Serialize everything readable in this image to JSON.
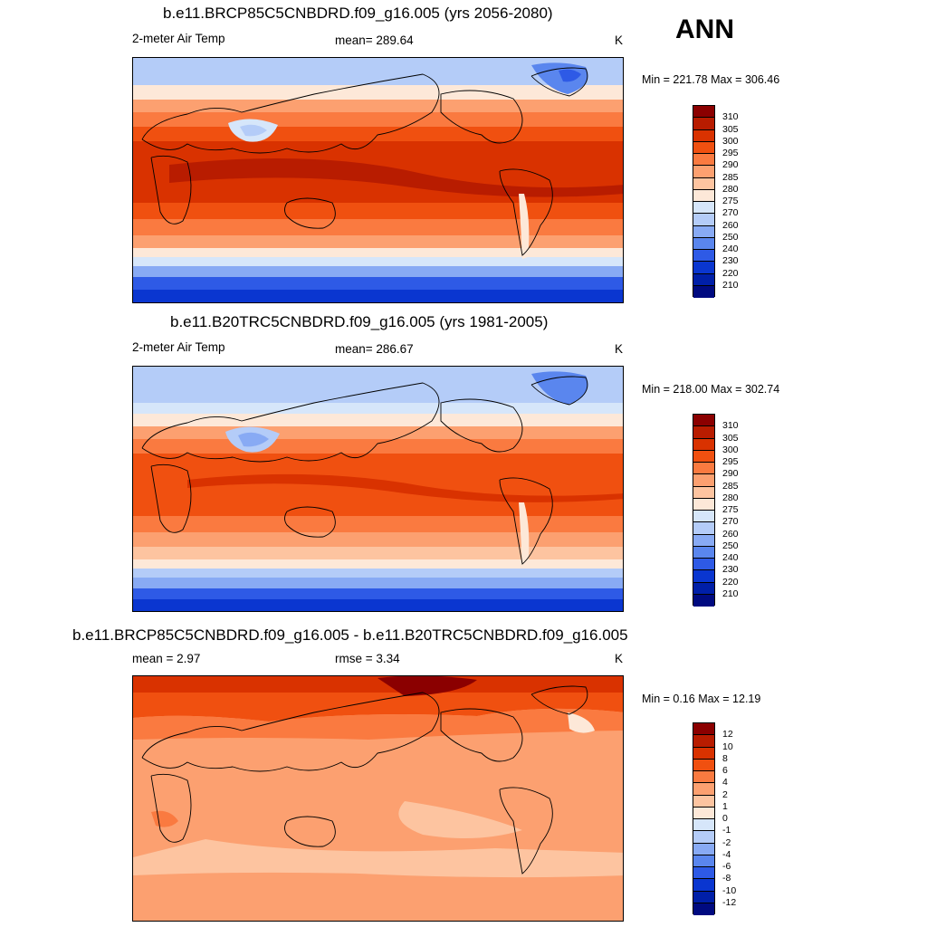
{
  "season": "ANN",
  "units": "K",
  "panels": [
    {
      "title": "b.e11.BRCP85C5CNBDRD.f09_g16.005 (yrs 2056-2080)",
      "left_label": "2-meter Air Temp",
      "center_label": "mean= 289.64",
      "units": "K",
      "minmax": "Min = 221.78 Max = 306.46"
    },
    {
      "title": "b.e11.B20TRC5CNBDRD.f09_g16.005 (yrs 1981-2005)",
      "left_label": "2-meter Air Temp",
      "center_label": "mean= 286.67",
      "units": "K",
      "minmax": "Min = 218.00 Max = 302.74"
    },
    {
      "title": "b.e11.BRCP85C5CNBDRD.f09_g16.005 - b.e11.B20TRC5CNBDRD.f09_g16.005",
      "left_label": "mean =   2.97",
      "center_label": "rmse =   3.34",
      "units": "K",
      "minmax": "Min =   0.16 Max =  12.19"
    }
  ],
  "colorbars": [
    {
      "labels": [
        "310",
        "305",
        "300",
        "295",
        "290",
        "285",
        "280",
        "275",
        "270",
        "260",
        "250",
        "240",
        "230",
        "220",
        "210"
      ],
      "colors": [
        "#8b0000",
        "#b81c00",
        "#d93200",
        "#f05010",
        "#fa7a40",
        "#fca070",
        "#fdc4a0",
        "#fde8d8",
        "#d6e6fa",
        "#b4ccf8",
        "#88aaf4",
        "#5a86ee",
        "#2e5ae6",
        "#0a36d0",
        "#001fa8",
        "#000a80"
      ]
    },
    {
      "labels": [
        "310",
        "305",
        "300",
        "295",
        "290",
        "285",
        "280",
        "275",
        "270",
        "260",
        "250",
        "240",
        "230",
        "220",
        "210"
      ],
      "colors": [
        "#8b0000",
        "#b81c00",
        "#d93200",
        "#f05010",
        "#fa7a40",
        "#fca070",
        "#fdc4a0",
        "#fde8d8",
        "#d6e6fa",
        "#b4ccf8",
        "#88aaf4",
        "#5a86ee",
        "#2e5ae6",
        "#0a36d0",
        "#001fa8",
        "#000a80"
      ]
    },
    {
      "labels": [
        "12",
        "10",
        "8",
        "6",
        "4",
        "2",
        "1",
        "0",
        "-1",
        "-2",
        "-4",
        "-6",
        "-8",
        "-10",
        "-12"
      ],
      "colors": [
        "#8b0000",
        "#b81c00",
        "#d93200",
        "#f05010",
        "#fa7a40",
        "#fca070",
        "#fdc4a0",
        "#fde8d8",
        "#d6e6fa",
        "#b4ccf8",
        "#88aaf4",
        "#5a86ee",
        "#2e5ae6",
        "#0a36d0",
        "#001fa8",
        "#000a80"
      ]
    }
  ]
}
